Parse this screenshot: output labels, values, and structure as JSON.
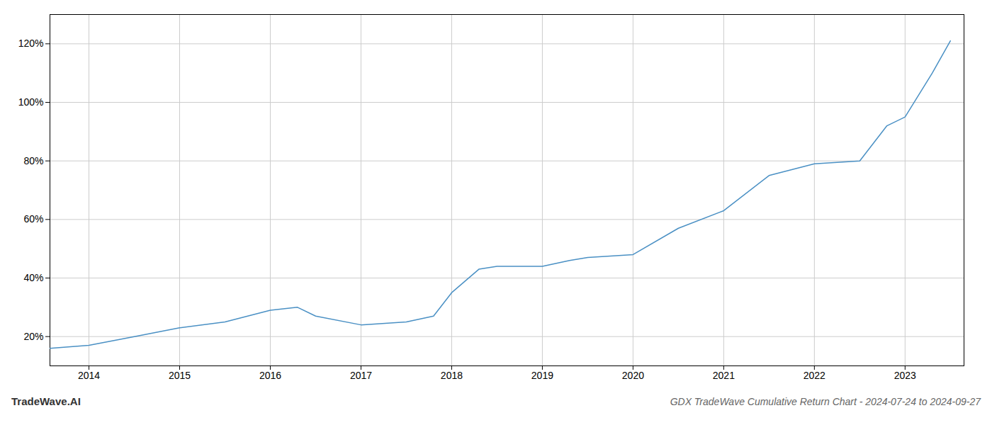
{
  "chart_data": {
    "type": "line",
    "title": "GDX TradeWave Cumulative Return Chart - 2024-07-24 to 2024-09-27",
    "annotations": [
      "TradeWave.AI"
    ],
    "x": [
      2013.57,
      2014.0,
      2014.5,
      2015.0,
      2015.5,
      2016.0,
      2016.3,
      2016.5,
      2017.0,
      2017.5,
      2017.8,
      2018.0,
      2018.3,
      2018.5,
      2019.0,
      2019.3,
      2019.5,
      2020.0,
      2020.5,
      2021.0,
      2021.5,
      2022.0,
      2022.5,
      2022.8,
      2023.0,
      2023.3,
      2023.5
    ],
    "values": [
      16,
      17,
      20,
      23,
      25,
      29,
      30,
      27,
      24,
      25,
      27,
      35,
      43,
      44,
      44,
      46,
      47,
      48,
      57,
      63,
      75,
      79,
      80,
      92,
      95,
      110,
      121
    ],
    "color": "#4a90c4",
    "xlim": [
      2013.57,
      2023.65
    ],
    "ylim": [
      10,
      130
    ],
    "xticks": [
      2014,
      2015,
      2016,
      2017,
      2018,
      2019,
      2020,
      2021,
      2022,
      2023
    ],
    "yticks": [
      {
        "value": 20,
        "label": "20%"
      },
      {
        "value": 40,
        "label": "40%"
      },
      {
        "value": 60,
        "label": "60%"
      },
      {
        "value": 80,
        "label": "80%"
      },
      {
        "value": 100,
        "label": "100%"
      },
      {
        "value": 120,
        "label": "120%"
      }
    ],
    "grid": true
  }
}
